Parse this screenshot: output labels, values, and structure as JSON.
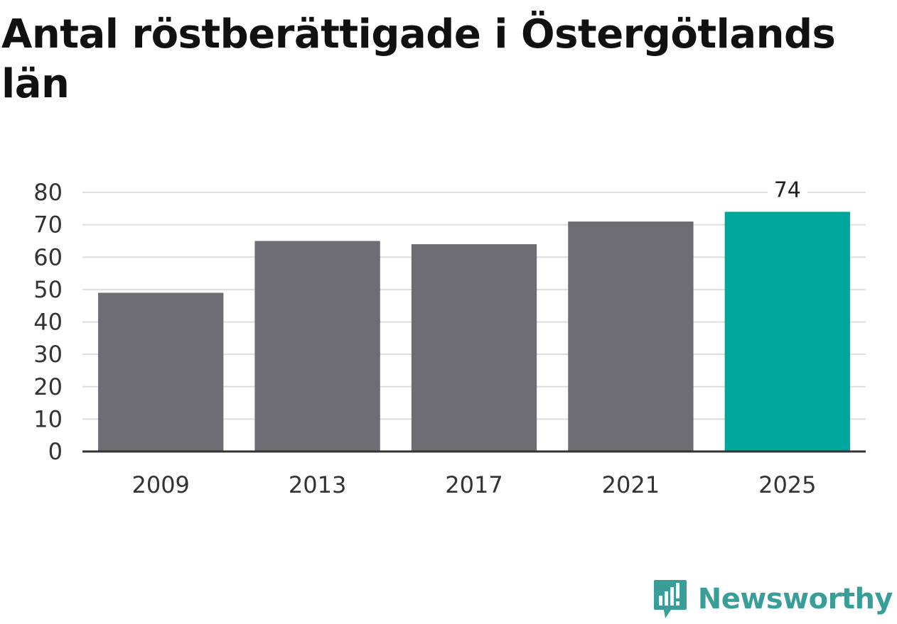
{
  "title": "Antal röstberättigade i Östergötlands län",
  "brand": {
    "name": "Newsworthy",
    "logo_icon": "newsworthy-logo-icon",
    "color": "#3a9e98"
  },
  "chart_data": {
    "type": "bar",
    "categories": [
      "2009",
      "2013",
      "2017",
      "2021",
      "2025"
    ],
    "values": [
      49,
      65,
      64,
      71,
      74
    ],
    "highlight_index": 4,
    "highlight_label": "74",
    "ylim": [
      0,
      80
    ],
    "yticks": [
      0,
      10,
      20,
      30,
      40,
      50,
      60,
      70,
      80
    ],
    "grid": true,
    "colors": {
      "bar": "#6e6d73",
      "highlight": "#00a59b",
      "grid": "#dddddd",
      "axis": "#333333"
    }
  }
}
